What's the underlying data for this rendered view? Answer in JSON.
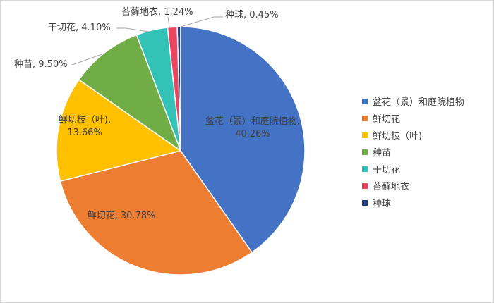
{
  "chart_data": {
    "type": "pie",
    "categories": [
      "盆花（景）和庭院植物",
      "鲜切花",
      "鲜切枝（叶)",
      "种苗",
      "干切花",
      "苔藓地衣",
      "种球"
    ],
    "values": [
      40.26,
      30.78,
      13.66,
      9.5,
      4.1,
      1.24,
      0.45
    ],
    "value_labels": [
      "盆花（景）和庭院植物, 40.26%",
      "鲜切花, 30.78%",
      "鲜切枝（叶), 13.66%",
      "种苗, 9.50%",
      "干切花, 4.10%",
      "苔藓地衣, 1.24%",
      "种球, 0.45%"
    ],
    "colors": [
      "#4472c4",
      "#ed7d31",
      "#ffc000",
      "#70ad47",
      "#33c3b6",
      "#e8475f",
      "#203d7c"
    ],
    "legend": "right"
  }
}
